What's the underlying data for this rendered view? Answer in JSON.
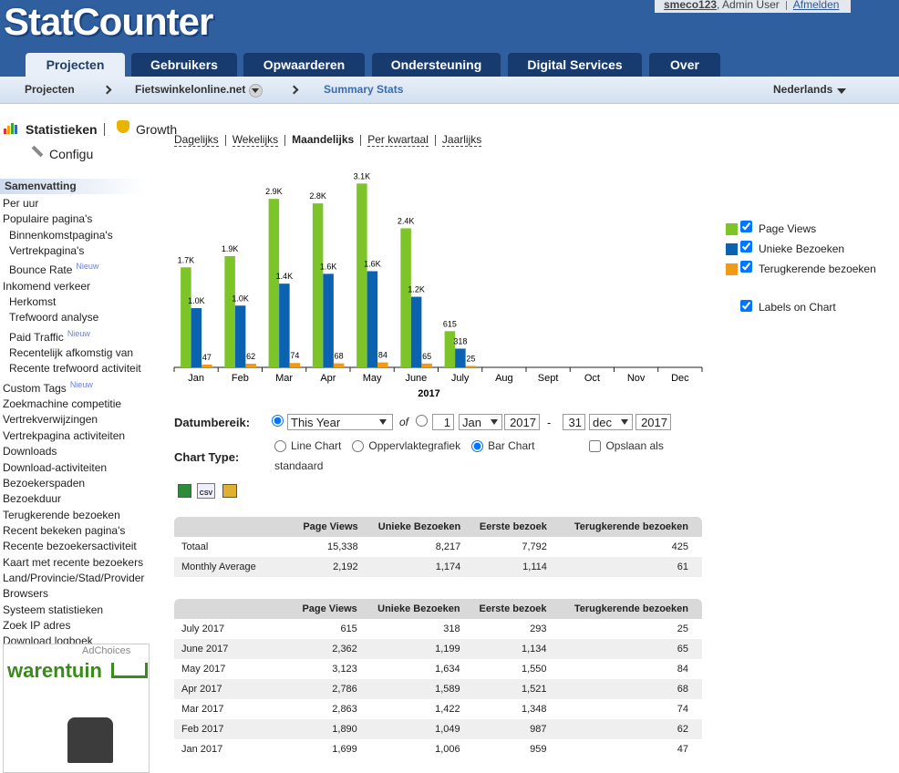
{
  "header": {
    "logo": "StatCounter",
    "user": "smeco123",
    "role": ", Admin User",
    "logout": "Afmelden"
  },
  "tabs": [
    "Projecten",
    "Gebruikers",
    "Opwaarderen",
    "Ondersteuning",
    "Digital Services",
    "Over"
  ],
  "active_tab": 0,
  "breadcrumb": {
    "items": [
      "Projecten",
      "Fietswinkelonline.net",
      "Summary Stats"
    ],
    "language": "Nederlands"
  },
  "sidebar": {
    "stats": "Statistieken",
    "growth": "Growth",
    "config": "Configu",
    "section": "Samenvatting",
    "items": [
      {
        "label": "Per uur"
      },
      {
        "label": "Populaire pagina's"
      },
      {
        "label": "Binnenkomstpagina's",
        "indent": true
      },
      {
        "label": "Vertrekpagina's",
        "indent": true
      },
      {
        "label": "Bounce Rate",
        "indent": true,
        "badge": "Nieuw"
      },
      {
        "label": "Inkomend verkeer"
      },
      {
        "label": "Herkomst",
        "indent": true
      },
      {
        "label": "Trefwoord analyse",
        "indent": true
      },
      {
        "label": "Paid Traffic",
        "indent": true,
        "badge": "Nieuw"
      },
      {
        "label": "Recentelijk afkomstig van",
        "indent": true
      },
      {
        "label": "Recente trefwoord activiteit",
        "indent": true
      },
      {
        "label": "Custom Tags",
        "badge": "Nieuw"
      },
      {
        "label": "Zoekmachine competitie"
      },
      {
        "label": "Vertrekverwijzingen"
      },
      {
        "label": "Vertrekpagina activiteiten"
      },
      {
        "label": "Downloads"
      },
      {
        "label": "Download-activiteiten"
      },
      {
        "label": "Bezoekerspaden"
      },
      {
        "label": "Bezoekduur"
      },
      {
        "label": "Terugkerende bezoeken"
      },
      {
        "label": "Recent bekeken pagina's"
      },
      {
        "label": "Recente bezoekersactiviteit"
      },
      {
        "label": "Kaart met recente bezoekers"
      },
      {
        "label": "Land/Provincie/Stad/Provider"
      },
      {
        "label": "Browsers"
      },
      {
        "label": "Systeem statistieken"
      },
      {
        "label": "Zoek IP adres"
      },
      {
        "label": "Download logboek"
      }
    ],
    "ad": {
      "choices": "AdChoices",
      "brand": "warentuin"
    }
  },
  "periods": [
    "Dagelijks",
    "Wekelijks",
    "Maandelijks",
    "Per kwartaal",
    "Jaarlijks"
  ],
  "active_period": 2,
  "chart_data": {
    "type": "bar",
    "categories": [
      "Jan",
      "Feb",
      "Mar",
      "Apr",
      "May",
      "June",
      "July",
      "Aug",
      "Sept",
      "Oct",
      "Nov",
      "Dec"
    ],
    "x_label": "2017",
    "ylim": [
      0,
      3500
    ],
    "show_labels": true,
    "labels_toggle": "Labels on Chart",
    "series": [
      {
        "name": "Page Views",
        "color": "#7cc427",
        "values": [
          1699,
          1890,
          2863,
          2786,
          3123,
          2362,
          615,
          null,
          null,
          null,
          null,
          null
        ],
        "value_labels": [
          "1.7K",
          "1.9K",
          "2.9K",
          "2.8K",
          "3.1K",
          "2.4K",
          "615",
          null,
          null,
          null,
          null,
          null
        ]
      },
      {
        "name": "Unieke Bezoeken",
        "color": "#0b62b0",
        "values": [
          1006,
          1049,
          1422,
          1589,
          1634,
          1199,
          318,
          null,
          null,
          null,
          null,
          null
        ],
        "value_labels": [
          "1.0K",
          "1.0K",
          "1.4K",
          "1.6K",
          "1.6K",
          "1.2K",
          "318",
          null,
          null,
          null,
          null,
          null
        ]
      },
      {
        "name": "Terugkerende bezoeken",
        "color": "#f09a17",
        "values": [
          47,
          62,
          74,
          68,
          84,
          65,
          25,
          null,
          null,
          null,
          null,
          null
        ],
        "value_labels": [
          "47",
          "62",
          "74",
          "68",
          "84",
          "65",
          "25",
          null,
          null,
          null,
          null,
          null
        ]
      }
    ]
  },
  "form": {
    "date_label": "Datumbereik:",
    "range": "This Year",
    "of": "of",
    "start": {
      "day": 1,
      "month": "Jan",
      "year": 2017
    },
    "dash": "-",
    "end": {
      "day": 31,
      "month": "dec",
      "year": 2017
    },
    "chart_type_label": "Chart Type:",
    "chart_types": [
      "Line Chart",
      "Oppervlaktegrafiek",
      "Bar Chart"
    ],
    "selected_type": 2,
    "save": "Opslaan als standaard",
    "csv": "CSV"
  },
  "summary_table": {
    "columns": [
      "Page Views",
      "Unieke Bezoeken",
      "Eerste bezoek",
      "Terugkerende bezoeken"
    ],
    "rows": [
      [
        "Totaal",
        "15,338",
        "8,217",
        "7,792",
        "425"
      ],
      [
        "Monthly Average",
        "2,192",
        "1,174",
        "1,114",
        "61"
      ]
    ]
  },
  "monthly_table": {
    "columns": [
      "Page Views",
      "Unieke Bezoeken",
      "Eerste bezoek",
      "Terugkerende bezoeken"
    ],
    "rows": [
      [
        "July 2017",
        "615",
        "318",
        "293",
        "25"
      ],
      [
        "June 2017",
        "2,362",
        "1,199",
        "1,134",
        "65"
      ],
      [
        "May 2017",
        "3,123",
        "1,634",
        "1,550",
        "84"
      ],
      [
        "Apr 2017",
        "2,786",
        "1,589",
        "1,521",
        "68"
      ],
      [
        "Mar 2017",
        "2,863",
        "1,422",
        "1,348",
        "74"
      ],
      [
        "Feb 2017",
        "1,890",
        "1,049",
        "987",
        "62"
      ],
      [
        "Jan 2017",
        "1,699",
        "1,006",
        "959",
        "47"
      ]
    ]
  }
}
